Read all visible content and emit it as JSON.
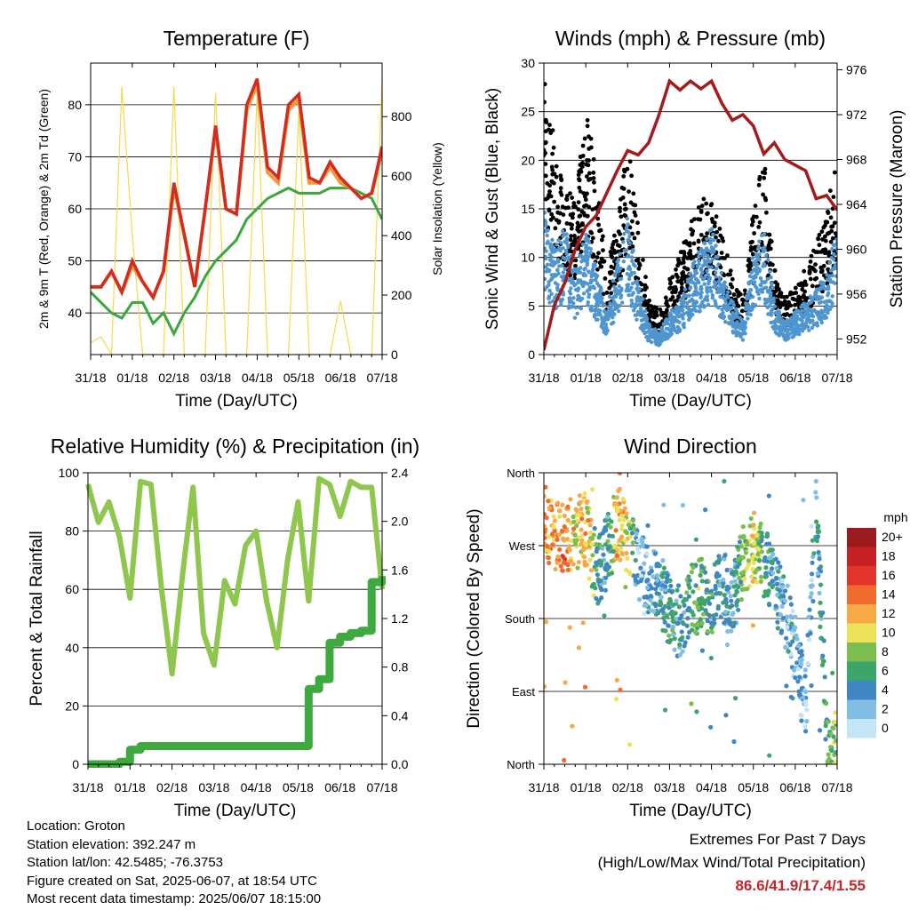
{
  "x_ticks": [
    "31/18",
    "01/18",
    "02/18",
    "03/18",
    "04/18",
    "05/18",
    "06/18",
    "07/18"
  ],
  "x_label": "Time (Day/UTC)",
  "chart_data": [
    {
      "type": "line",
      "title": "Temperature (F)",
      "xlabel": "Time (Day/UTC)",
      "ylabel": "2m & 9m T (Red, Orange) & 2m Td (Green)",
      "y2label": "Solar Insolation (Yellow)",
      "ylim": [
        32,
        88
      ],
      "y2lim": [
        0,
        980
      ],
      "yticks": [
        40,
        50,
        60,
        70,
        80
      ],
      "y2ticks": [
        0,
        200,
        400,
        600,
        800
      ],
      "grid": true,
      "x": [
        0,
        0.25,
        0.5,
        0.75,
        1,
        1.25,
        1.5,
        1.75,
        2,
        2.25,
        2.5,
        2.75,
        3,
        3.25,
        3.5,
        3.75,
        4,
        4.25,
        4.5,
        4.75,
        5,
        5.25,
        5.5,
        5.75,
        6,
        6.25,
        6.5,
        6.75,
        7
      ],
      "series": [
        {
          "name": "2m T",
          "color": "#d42a22",
          "axis": "left",
          "values": [
            45,
            45,
            48,
            44,
            50,
            46,
            43,
            48,
            65,
            55,
            45,
            60,
            76,
            60,
            59,
            80,
            85,
            68,
            66,
            80,
            82,
            66,
            65,
            69,
            66,
            64,
            62,
            63,
            72
          ]
        },
        {
          "name": "9m T",
          "color": "#f29a37",
          "axis": "left",
          "values": [
            45,
            45,
            48,
            44,
            49,
            46,
            43,
            48,
            64,
            55,
            45,
            60,
            75,
            60,
            59,
            79,
            84,
            67,
            65,
            79,
            81,
            65,
            65,
            68,
            65,
            64,
            62,
            63,
            71
          ]
        },
        {
          "name": "2m Td",
          "color": "#3aa83a",
          "axis": "left",
          "values": [
            44,
            42,
            40,
            39,
            42,
            42,
            38,
            40,
            36,
            40,
            43,
            47,
            50,
            52,
            54,
            58,
            60,
            62,
            63,
            64,
            63,
            63,
            63,
            64,
            64,
            64,
            63,
            62,
            58
          ]
        },
        {
          "name": "Solar Insolation",
          "color": "#f7d94c",
          "axis": "right",
          "values": [
            40,
            60,
            0,
            900,
            400,
            0,
            0,
            0,
            900,
            0,
            0,
            0,
            880,
            0,
            0,
            0,
            880,
            0,
            0,
            0,
            820,
            0,
            0,
            0,
            180,
            0,
            0,
            0,
            920
          ]
        }
      ]
    },
    {
      "type": "scatter",
      "title": "Winds (mph) & Pressure (mb)",
      "xlabel": "Time (Day/UTC)",
      "ylabel": "Sonic Wind & Gust (Blue, Black)",
      "y2label": "Station Pressure (Maroon)",
      "ylim": [
        0,
        30
      ],
      "y2lim": [
        950.6,
        976.6
      ],
      "yticks": [
        0,
        5,
        10,
        15,
        20,
        25,
        30
      ],
      "y2ticks": [
        952,
        956,
        960,
        964,
        968,
        972,
        976
      ],
      "grid": true,
      "x": [
        0,
        0.25,
        0.5,
        0.75,
        1,
        1.25,
        1.5,
        1.75,
        2,
        2.25,
        2.5,
        2.75,
        3,
        3.25,
        3.5,
        3.75,
        4,
        4.25,
        4.5,
        4.75,
        5,
        5.25,
        5.5,
        5.75,
        6,
        6.25,
        6.5,
        6.75,
        7
      ],
      "series": [
        {
          "name": "Sonic Wind",
          "color": "#4f95cf",
          "axis": "left",
          "values": [
            14,
            10,
            12,
            8,
            12,
            8,
            4,
            9,
            13,
            7,
            3,
            2,
            4,
            5,
            8,
            10,
            12,
            8,
            5,
            3,
            10,
            12,
            5,
            3,
            4,
            5,
            6,
            8,
            12
          ]
        },
        {
          "name": "Gust",
          "color": "#000000",
          "axis": "left",
          "values": [
            25,
            20,
            15,
            14,
            23,
            16,
            8,
            12,
            19,
            12,
            5,
            4,
            7,
            9,
            12,
            14,
            14,
            11,
            7,
            5,
            13,
            18,
            8,
            5,
            6,
            8,
            10,
            13,
            18
          ]
        },
        {
          "name": "Station Pressure",
          "color": "#a31b1b",
          "axis": "right",
          "values": [
            951,
            955,
            957,
            960,
            962,
            963,
            965,
            967,
            968.8,
            968.4,
            969.5,
            972,
            975,
            974.2,
            975,
            974.3,
            975,
            973,
            971.5,
            972,
            971,
            968.5,
            969.5,
            968,
            967.5,
            967,
            964.5,
            964.8,
            963.5
          ]
        }
      ]
    },
    {
      "type": "line",
      "title": "Relative Humidity (%) & Precipitation (in)",
      "xlabel": "Time (Day/UTC)",
      "ylabel": "Percent & Total Rainfall",
      "ylim": [
        0,
        100
      ],
      "y2lim": [
        0,
        2.4
      ],
      "yticks": [
        0,
        20,
        40,
        60,
        80,
        100
      ],
      "y2ticks": [
        0.0,
        0.4,
        0.8,
        1.2,
        1.6,
        2.0,
        2.4
      ],
      "grid": true,
      "x": [
        0,
        0.25,
        0.5,
        0.75,
        1,
        1.25,
        1.5,
        1.75,
        2,
        2.25,
        2.5,
        2.75,
        3,
        3.25,
        3.5,
        3.75,
        4,
        4.25,
        4.5,
        4.75,
        5,
        5.25,
        5.5,
        5.75,
        6,
        6.25,
        6.5,
        6.75,
        7
      ],
      "series": [
        {
          "name": "Relative Humidity",
          "color": "#8fc74e",
          "axis": "left",
          "values": [
            96,
            83,
            90,
            78,
            57,
            97,
            96,
            60,
            31,
            65,
            95,
            45,
            34,
            63,
            55,
            75,
            80,
            56,
            40,
            70,
            90,
            56,
            98,
            96,
            85,
            97,
            95,
            95,
            60
          ]
        },
        {
          "name": "Total Precipitation",
          "color": "#3ea93e",
          "axis": "right",
          "values": [
            0,
            0,
            0,
            0.02,
            0.12,
            0.15,
            0.15,
            0.15,
            0.15,
            0.15,
            0.15,
            0.15,
            0.15,
            0.15,
            0.15,
            0.15,
            0.15,
            0.15,
            0.15,
            0.15,
            0.15,
            0.62,
            0.7,
            1.0,
            1.05,
            1.08,
            1.1,
            1.5,
            1.55
          ]
        }
      ]
    },
    {
      "type": "scatter",
      "title": "Wind Direction",
      "xlabel": "Time (Day/UTC)",
      "ylabel": "Direction (Colored By Speed)",
      "yticklabels": [
        "North",
        "East",
        "South",
        "West",
        "North"
      ],
      "ylim": [
        0,
        360
      ],
      "grid": true,
      "legend": {
        "title": "mph",
        "position": "right",
        "levels": [
          "20+",
          "18",
          "16",
          "14",
          "12",
          "10",
          "8",
          "6",
          "4",
          "2",
          "0"
        ]
      },
      "colors": [
        "#9b1b1e",
        "#c52127",
        "#e4342b",
        "#f06b2e",
        "#f6a947",
        "#ede15a",
        "#7cbd4f",
        "#3ea56a",
        "#3e87c3",
        "#82bde3",
        "#c3e6f7"
      ],
      "x": [
        0,
        0.25,
        0.5,
        0.75,
        1,
        1.25,
        1.5,
        1.75,
        2,
        2.25,
        2.5,
        2.75,
        3,
        3.25,
        3.5,
        3.75,
        4,
        4.25,
        4.5,
        4.75,
        5,
        5.25,
        5.5,
        5.75,
        6,
        6.25,
        6.5,
        6.75,
        7
      ],
      "direction": [
        300,
        285,
        280,
        285,
        290,
        240,
        260,
        300,
        280,
        250,
        230,
        220,
        185,
        175,
        200,
        210,
        195,
        225,
        195,
        255,
        270,
        250,
        220,
        190,
        140,
        70,
        320,
        40,
        20
      ],
      "speed": [
        13,
        12,
        14,
        10,
        12,
        6,
        4,
        12,
        10,
        2,
        3,
        4,
        5,
        4,
        6,
        7,
        5,
        4,
        3,
        8,
        10,
        5,
        4,
        3,
        3,
        2,
        4,
        6,
        8
      ]
    }
  ],
  "info": {
    "location": "Location: Groton",
    "elevation": "Station elevation: 392.247 m",
    "latlon": "Station lat/lon: 42.5485; -76.3753",
    "created": "Figure created on Sat, 2025-06-07, at 18:54 UTC",
    "recent": "Most recent data timestamp: 2025/06/07 18:15:00"
  },
  "extremes": {
    "title": "Extremes For Past 7 Days",
    "subtitle": "(High/Low/Max Wind/Total Precipitation)",
    "values": "86.6/41.9/17.4/1.55"
  }
}
